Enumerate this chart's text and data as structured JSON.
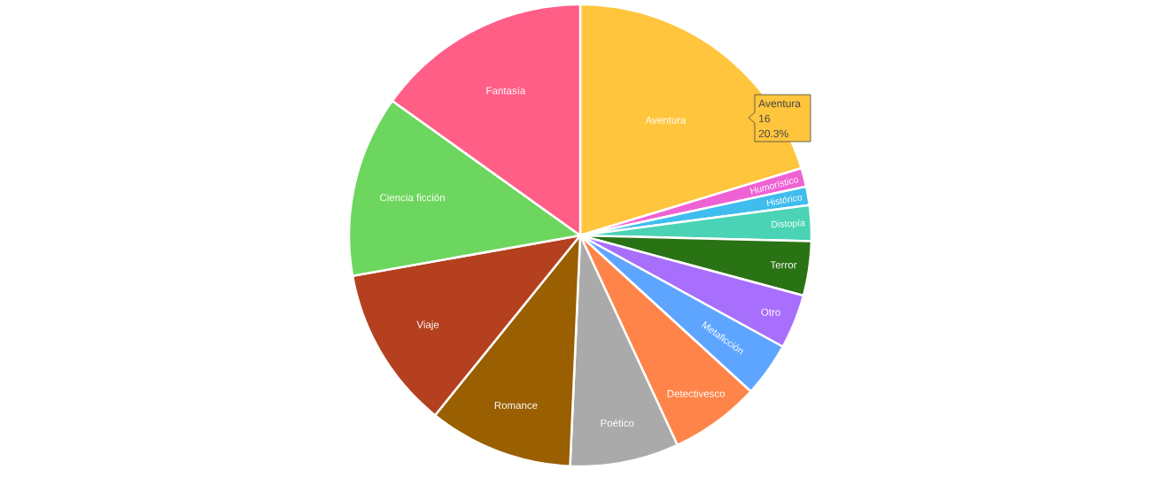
{
  "chart_data": {
    "type": "pie",
    "categories": [
      "Aventura",
      "Humorístico",
      "Histórico",
      "Distopía",
      "Terror",
      "Otro",
      "Metaficción",
      "Detectivesco",
      "Poético",
      "Romance",
      "Viaje",
      "Ciencia ficción",
      "Fantasía"
    ],
    "values": [
      20.3,
      1.3,
      1.3,
      2.5,
      3.8,
      3.8,
      3.8,
      6.3,
      7.6,
      10.1,
      11.4,
      12.7,
      15.1
    ],
    "colors": [
      "#ffc53d",
      "#ef62d4",
      "#3fbdee",
      "#4bd3b5",
      "#2a7315",
      "#a86efc",
      "#5ea5ff",
      "#ff8449",
      "#aaaaaa",
      "#995f00",
      "#b54020",
      "#6dd65e",
      "#ff5e87"
    ],
    "annotations": [
      "Aventura",
      "16",
      "20.3%"
    ]
  }
}
